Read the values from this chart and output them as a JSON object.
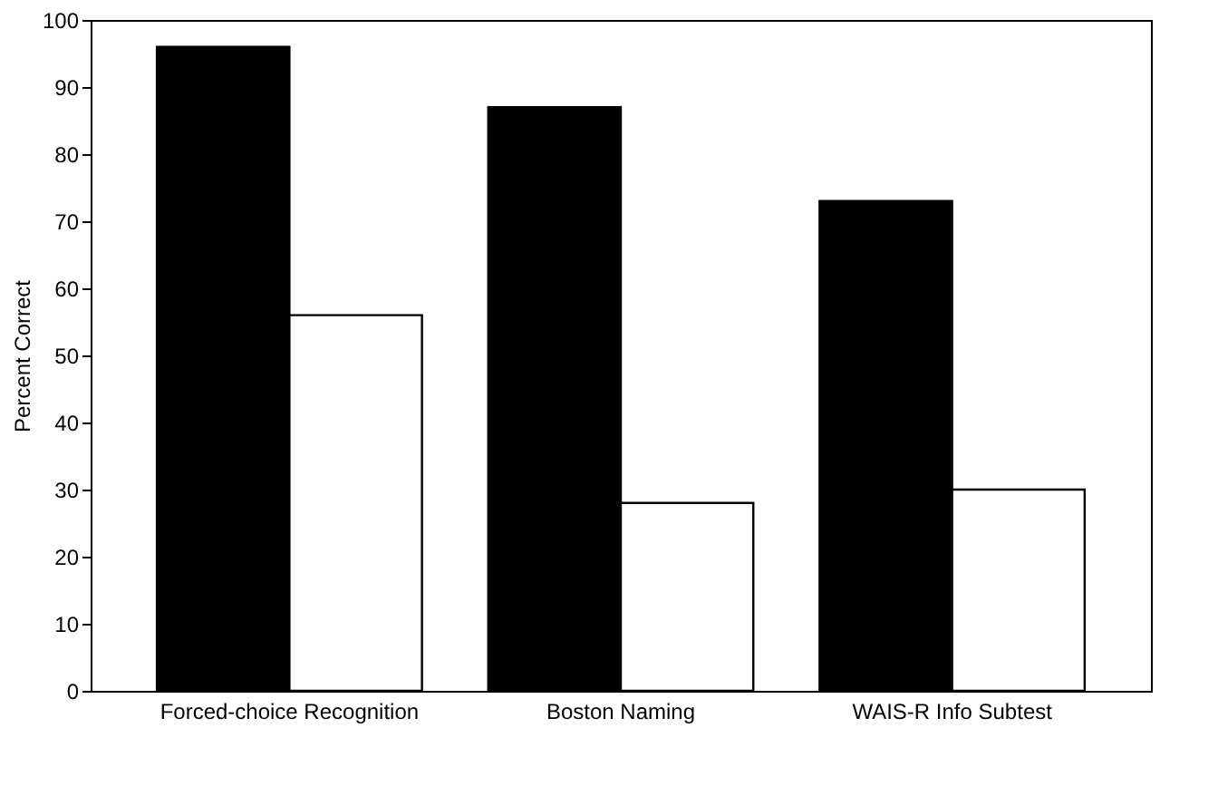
{
  "chart_data": {
    "type": "bar",
    "ylabel": "Percent Correct",
    "categories": [
      "Forced-choice Recognition",
      "Boston Naming",
      "WAIS-R Info Subtest"
    ],
    "series": [
      {
        "color": "#000000",
        "values": [
          96,
          87,
          73
        ]
      },
      {
        "color": "#ffffff",
        "values": [
          56,
          28,
          30
        ]
      }
    ],
    "ylim": [
      0,
      100
    ],
    "yticks": [
      0,
      10,
      20,
      30,
      40,
      50,
      60,
      70,
      80,
      90,
      100
    ],
    "grid": false
  }
}
